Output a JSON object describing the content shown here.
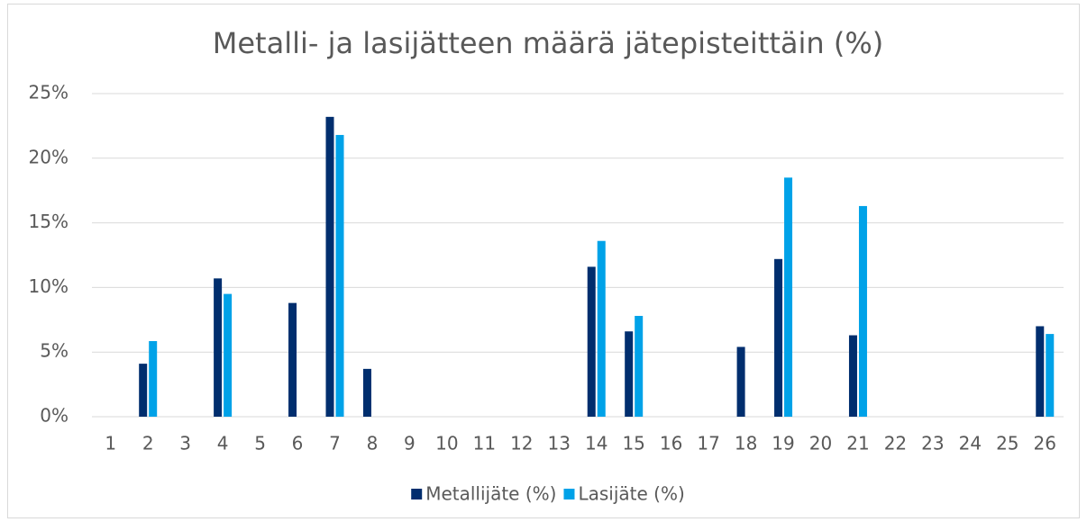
{
  "chart_data": {
    "type": "bar",
    "title": "Metalli- ja lasijätteen määrä jätepisteittäin (%)",
    "categories": [
      "1",
      "2",
      "3",
      "4",
      "5",
      "6",
      "7",
      "8",
      "9",
      "10",
      "11",
      "12",
      "13",
      "14",
      "15",
      "16",
      "17",
      "18",
      "19",
      "20",
      "21",
      "22",
      "23",
      "24",
      "25",
      "26"
    ],
    "series": [
      {
        "name": "Metallijäte (%)",
        "color": "#002e6e",
        "values": [
          0,
          4.1,
          0,
          10.7,
          0,
          8.8,
          23.2,
          3.7,
          0,
          0,
          0,
          0,
          0,
          11.6,
          6.6,
          0,
          0,
          5.4,
          12.2,
          0,
          6.3,
          0,
          0,
          0,
          0,
          7.0
        ]
      },
      {
        "name": "Lasijäte (%)",
        "color": "#00a2e8",
        "values": [
          0,
          5.85,
          0,
          9.5,
          0,
          0,
          21.8,
          0,
          0,
          0,
          0,
          0,
          0,
          13.6,
          7.8,
          0,
          0,
          0,
          18.5,
          0,
          16.3,
          0,
          0,
          0,
          0,
          6.4
        ]
      }
    ],
    "ylim": [
      0,
      25
    ],
    "yticks": [
      {
        "value": 0,
        "label": "0%"
      },
      {
        "value": 5,
        "label": "5%"
      },
      {
        "value": 10,
        "label": "10%"
      },
      {
        "value": 15,
        "label": "15%"
      },
      {
        "value": 20,
        "label": "20%"
      },
      {
        "value": 25,
        "label": "25%"
      }
    ],
    "grid": true,
    "legend": "bottom"
  }
}
